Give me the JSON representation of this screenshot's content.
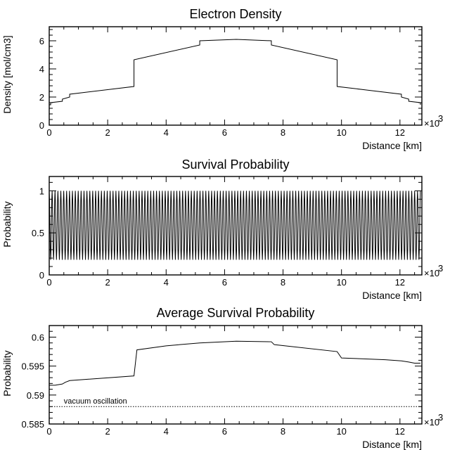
{
  "chart_data": [
    {
      "type": "line",
      "title": "Electron Density",
      "xlabel": "Distance [km]",
      "ylabel": "Density [mol/cm3]",
      "x_multiplier": "×10",
      "x_multiplier_exp": "3",
      "xlim": [
        0,
        12.75
      ],
      "ylim": [
        0,
        7
      ],
      "x_ticks": [
        0,
        2,
        4,
        6,
        8,
        10,
        12
      ],
      "y_ticks": [
        0,
        2,
        4,
        6
      ],
      "x_tick_labels": [
        "0",
        "2",
        "4",
        "6",
        "8",
        "10",
        "12"
      ],
      "y_tick_labels": [
        "0",
        "2",
        "4",
        "6"
      ],
      "grid": false,
      "series": [
        {
          "x": [
            0,
            0.05,
            0.05,
            0.45,
            0.45,
            0.7,
            0.7,
            2.9,
            2.9,
            5.15,
            5.15,
            6.4,
            7.6,
            7.6,
            9.85,
            9.85,
            12.05,
            12.05,
            12.3,
            12.3,
            12.7,
            12.7
          ],
          "y": [
            1.45,
            1.45,
            1.6,
            1.7,
            1.85,
            2.0,
            2.2,
            2.75,
            4.65,
            5.7,
            6.0,
            6.1,
            6.0,
            5.7,
            4.65,
            2.75,
            2.2,
            2.0,
            1.85,
            1.7,
            1.6,
            1.45
          ],
          "style": "curve"
        }
      ]
    },
    {
      "type": "line",
      "title": "Survival Probability",
      "xlabel": "Distance [km]",
      "ylabel": "Probability",
      "x_multiplier": "×10",
      "x_multiplier_exp": "3",
      "xlim": [
        0,
        12.75
      ],
      "ylim": [
        0,
        1.17
      ],
      "x_ticks": [
        0,
        2,
        4,
        6,
        8,
        10,
        12
      ],
      "y_ticks": [
        0,
        0.5,
        1
      ],
      "x_tick_labels": [
        "0",
        "2",
        "4",
        "6",
        "8",
        "10",
        "12"
      ],
      "y_tick_labels": [
        "0",
        "0.5",
        "1"
      ],
      "grid": false,
      "series": [
        {
          "style": "oscillation",
          "oscillation": {
            "periods": 128,
            "min": 0.18,
            "max": 1.0,
            "x_start": 0,
            "x_end": 12.7
          }
        }
      ]
    },
    {
      "type": "line",
      "title": "Average Survival Probability",
      "xlabel": "Distance [km]",
      "ylabel": "Probability",
      "x_multiplier": "×10",
      "x_multiplier_exp": "3",
      "xlim": [
        0,
        12.75
      ],
      "ylim": [
        0.585,
        0.602
      ],
      "x_ticks": [
        0,
        2,
        4,
        6,
        8,
        10,
        12
      ],
      "y_ticks": [
        0.585,
        0.59,
        0.595,
        0.6
      ],
      "x_tick_labels": [
        "0",
        "2",
        "4",
        "6",
        "8",
        "10",
        "12"
      ],
      "y_tick_labels": [
        "0.585",
        "0.59",
        "0.595",
        "0.6"
      ],
      "grid": false,
      "series": [
        {
          "style": "curve",
          "x": [
            0,
            0.2,
            0.45,
            0.55,
            0.7,
            2.9,
            3.0,
            4.0,
            5.15,
            6.4,
            7.6,
            7.7,
            9.85,
            10.0,
            11.5,
            12.05,
            12.3,
            12.5,
            12.7
          ],
          "y": [
            0.5917,
            0.5917,
            0.5919,
            0.5922,
            0.5925,
            0.5933,
            0.5978,
            0.5985,
            0.599,
            0.5993,
            0.5992,
            0.5987,
            0.5975,
            0.5964,
            0.5961,
            0.5959,
            0.5957,
            0.5955,
            0.5955
          ]
        },
        {
          "style": "dotted",
          "x": [
            0,
            12.75
          ],
          "y": [
            0.588,
            0.588
          ]
        }
      ],
      "annotations": [
        {
          "text": "vacuum oscillation",
          "x": 0.5,
          "y": 0.5883
        }
      ]
    }
  ]
}
